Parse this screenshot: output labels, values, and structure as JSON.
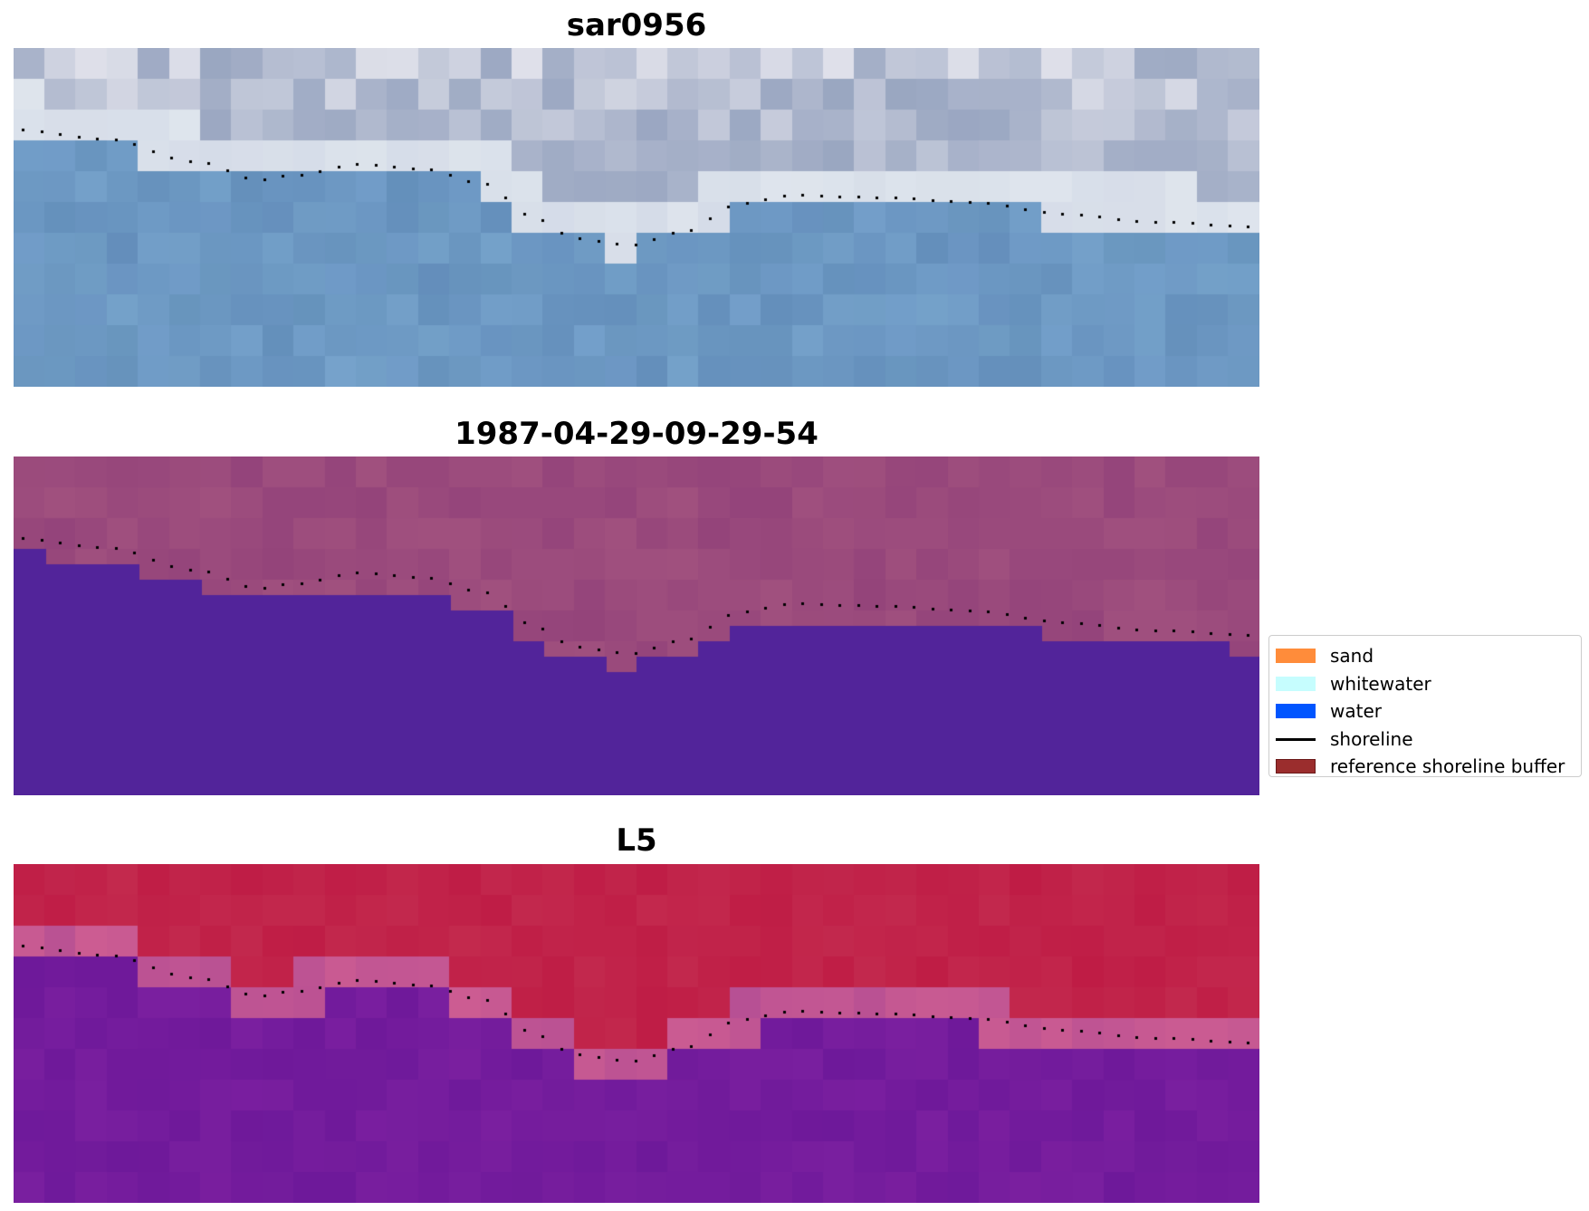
{
  "panels": [
    {
      "title": "sar0956",
      "style": "rgb"
    },
    {
      "title": "1987-04-29-09-29-54",
      "style": "classified"
    },
    {
      "title": "L5",
      "style": "index"
    }
  ],
  "legend": {
    "items": [
      {
        "label": "sand",
        "kind": "patch",
        "color": "#ff8c3a",
        "edge": "#ff8c3a"
      },
      {
        "label": "whitewater",
        "kind": "patch",
        "color": "#c6fdfe",
        "edge": "#c6fdfe"
      },
      {
        "label": "water",
        "kind": "patch",
        "color": "#0055ff",
        "edge": "#0055ff"
      },
      {
        "label": "shoreline",
        "kind": "line",
        "color": "#000000",
        "edge": "#000000"
      },
      {
        "label": "reference shoreline buffer",
        "kind": "patch",
        "color": "#9b2d2d",
        "edge": "#6b1a1a"
      }
    ]
  },
  "colors": {
    "classified_water": "#52249a",
    "classified_land": "#a0507e",
    "index_land": "#bf1c45",
    "index_water": "#7a1f9f",
    "index_buffer": "#cc5c92",
    "rgb_water": "#6f9cc4",
    "rgb_cloud": "#e6e6ee",
    "shoreline_dots": "#000000"
  }
}
